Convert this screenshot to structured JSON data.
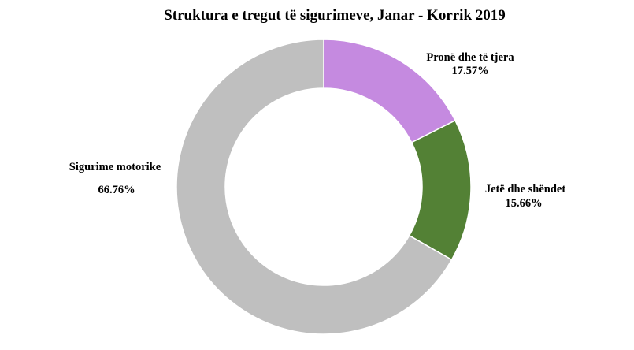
{
  "chart_data": {
    "type": "pie",
    "donut": true,
    "title": "Struktura  e tregut të sigurimeve,  Janar - Korrik  2019",
    "slices": [
      {
        "name": "Pronë dhe të tjera",
        "value": 17.57,
        "value_label": "17.57%",
        "color": "#c58ae0"
      },
      {
        "name": "Jetë dhe shëndet",
        "value": 15.66,
        "value_label": "15.66%",
        "color": "#538135"
      },
      {
        "name": "Sigurime motorike",
        "value": 66.76,
        "value_label": "66.76%",
        "color": "#bfbfbf"
      }
    ]
  }
}
